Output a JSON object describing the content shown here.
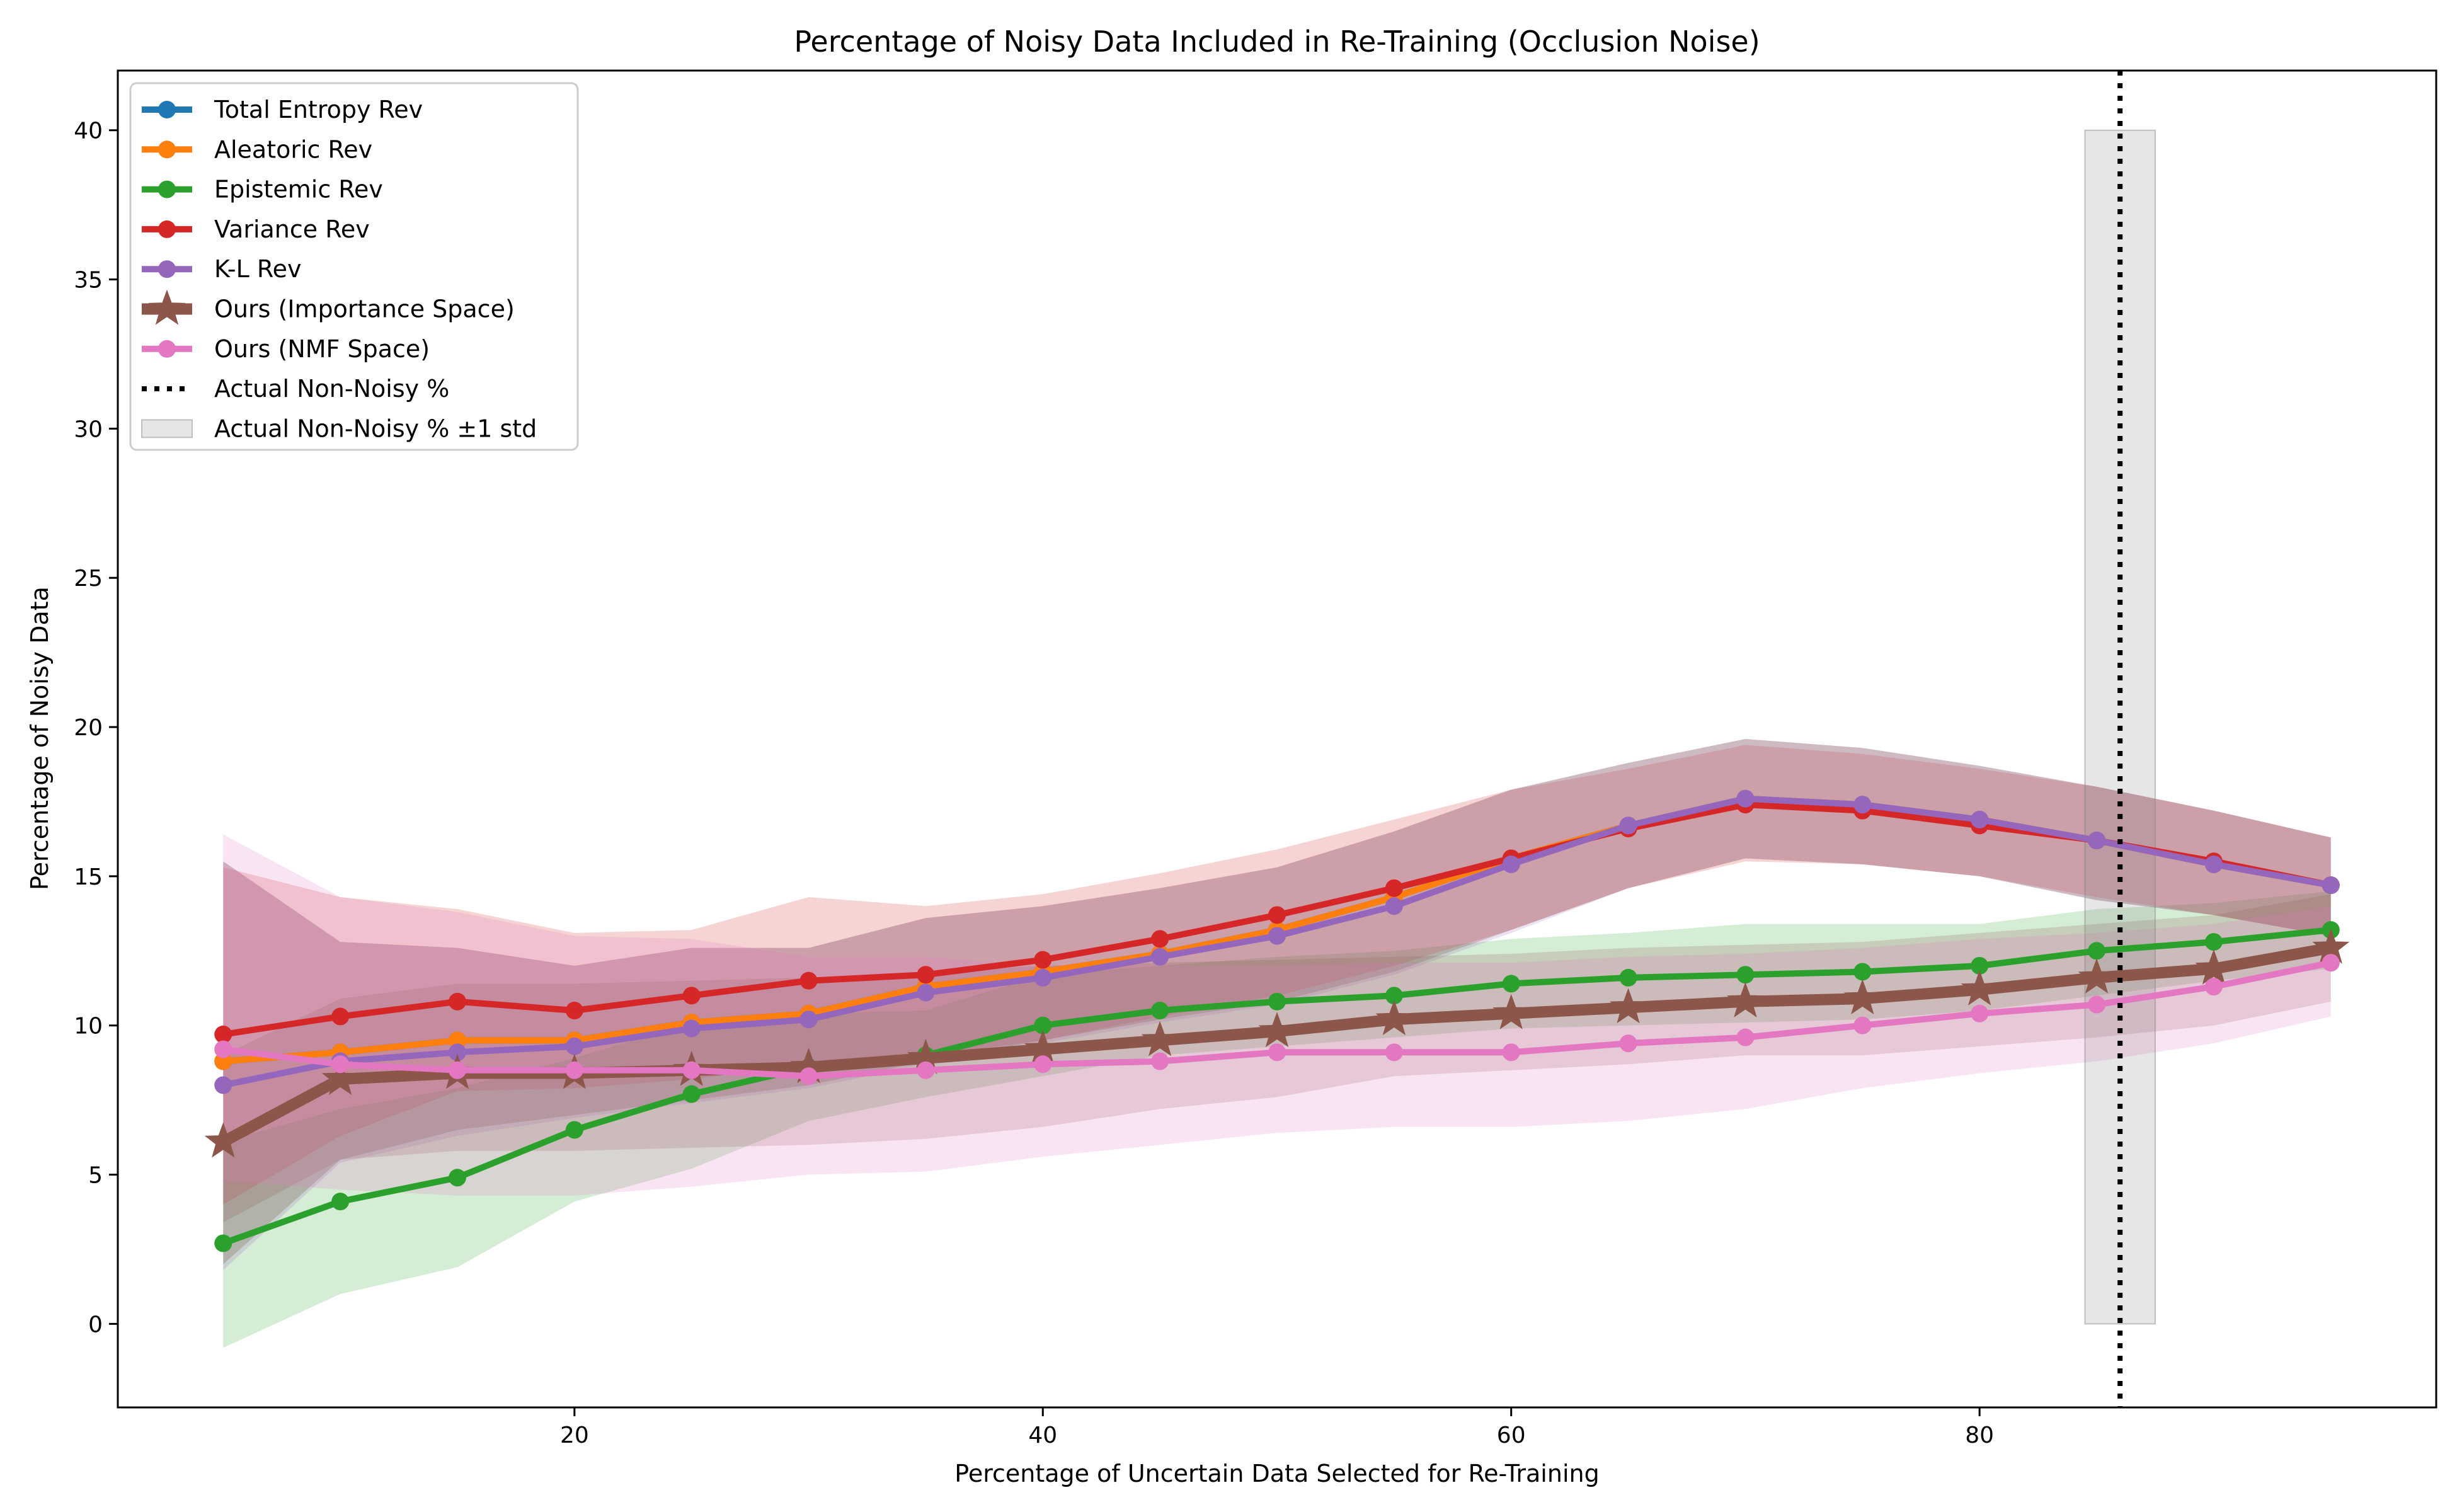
{
  "chart_data": {
    "type": "line",
    "title": "Percentage of Noisy Data Included in Re-Training (Occlusion Noise)",
    "xlabel": "Percentage of Uncertain Data Selected for Re-Training",
    "ylabel": "Percentage of Noisy Data",
    "xlim": [
      0.5,
      99.5
    ],
    "ylim": [
      -2.8,
      42
    ],
    "x_ticks": [
      20,
      40,
      60,
      80
    ],
    "y_ticks": [
      0,
      5,
      10,
      15,
      20,
      25,
      30,
      35,
      40
    ],
    "grid": false,
    "legend_position": "upper-left",
    "x": [
      5,
      10,
      15,
      20,
      25,
      30,
      35,
      40,
      45,
      50,
      55,
      60,
      65,
      70,
      75,
      80,
      85,
      90,
      95
    ],
    "series": [
      {
        "name": "Total Entropy Rev",
        "color": "#1f77b4",
        "marker": "circle",
        "values": [
          8.8,
          9.1,
          9.5,
          9.5,
          10.1,
          10.4,
          11.3,
          11.8,
          12.4,
          13.2,
          14.3,
          15.6,
          16.7,
          17.6,
          17.4,
          16.9,
          16.2,
          15.4,
          14.7
        ],
        "lower": [
          2.0,
          5.5,
          6.5,
          7.0,
          7.5,
          8.0,
          8.8,
          9.5,
          10.2,
          10.8,
          11.8,
          13.2,
          14.6,
          15.6,
          15.4,
          15.0,
          14.2,
          13.7,
          13.0
        ],
        "upper": [
          15.5,
          12.8,
          12.6,
          12.0,
          12.6,
          12.6,
          13.6,
          14.0,
          14.6,
          15.3,
          16.5,
          17.9,
          18.8,
          19.6,
          19.3,
          18.7,
          18.0,
          17.2,
          16.3
        ]
      },
      {
        "name": "Aleatoric Rev",
        "color": "#ff7f0e",
        "marker": "circle",
        "values": [
          8.8,
          9.1,
          9.5,
          9.5,
          10.1,
          10.4,
          11.3,
          11.8,
          12.4,
          13.2,
          14.3,
          15.6,
          16.7,
          17.6,
          17.4,
          16.9,
          16.2,
          15.4,
          14.7
        ],
        "lower": [
          2.0,
          5.5,
          6.5,
          7.0,
          7.5,
          8.0,
          8.8,
          9.5,
          10.2,
          10.8,
          11.8,
          13.2,
          14.6,
          15.6,
          15.4,
          15.0,
          14.2,
          13.7,
          13.0
        ],
        "upper": [
          15.5,
          12.8,
          12.6,
          12.0,
          12.6,
          12.6,
          13.6,
          14.0,
          14.6,
          15.3,
          16.5,
          17.9,
          18.8,
          19.6,
          19.3,
          18.7,
          18.0,
          17.2,
          16.3
        ]
      },
      {
        "name": "Epistemic Rev",
        "color": "#2ca02c",
        "marker": "circle",
        "values": [
          2.7,
          4.1,
          4.9,
          6.5,
          7.7,
          8.6,
          9.0,
          10.0,
          10.5,
          10.8,
          11.0,
          11.4,
          11.6,
          11.7,
          11.8,
          12.0,
          12.5,
          12.8,
          13.2
        ],
        "lower": [
          -0.8,
          1.0,
          1.9,
          4.1,
          5.2,
          6.8,
          7.6,
          8.3,
          9.0,
          9.3,
          9.6,
          9.9,
          10.0,
          10.1,
          10.2,
          10.5,
          11.0,
          11.5,
          11.9
        ],
        "upper": [
          6.1,
          7.2,
          7.9,
          8.9,
          10.1,
          10.4,
          10.5,
          11.7,
          12.0,
          12.3,
          12.5,
          12.9,
          13.1,
          13.4,
          13.4,
          13.4,
          13.9,
          14.1,
          14.5
        ]
      },
      {
        "name": "Variance Rev",
        "color": "#d62728",
        "marker": "circle",
        "values": [
          9.7,
          10.3,
          10.8,
          10.5,
          11.0,
          11.5,
          11.7,
          12.2,
          12.9,
          13.7,
          14.6,
          15.6,
          16.6,
          17.4,
          17.2,
          16.7,
          16.2,
          15.5,
          14.7
        ],
        "lower": [
          4.0,
          6.3,
          7.8,
          7.9,
          8.2,
          8.7,
          9.0,
          9.5,
          10.3,
          11.0,
          12.0,
          13.2,
          14.6,
          15.5,
          15.4,
          15.0,
          14.3,
          13.7,
          13.0
        ],
        "upper": [
          15.3,
          14.3,
          13.9,
          13.1,
          13.2,
          14.3,
          14.0,
          14.4,
          15.1,
          15.9,
          16.9,
          17.9,
          18.6,
          19.4,
          19.1,
          18.6,
          18.0,
          17.2,
          16.3
        ]
      },
      {
        "name": "K-L Rev",
        "color": "#9467bd",
        "marker": "circle",
        "values": [
          8.0,
          8.8,
          9.1,
          9.3,
          9.9,
          10.2,
          11.1,
          11.6,
          12.3,
          13.0,
          14.0,
          15.4,
          16.7,
          17.6,
          17.4,
          16.9,
          16.2,
          15.4,
          14.7
        ],
        "lower": [
          1.8,
          5.4,
          6.3,
          6.9,
          7.4,
          7.9,
          8.7,
          9.4,
          10.1,
          10.7,
          11.7,
          13.1,
          14.6,
          15.6,
          15.4,
          15.0,
          14.2,
          13.7,
          13.0
        ],
        "upper": [
          15.5,
          12.8,
          12.6,
          12.0,
          12.6,
          12.6,
          13.6,
          14.0,
          14.6,
          15.3,
          16.5,
          17.9,
          18.8,
          19.6,
          19.3,
          18.7,
          18.0,
          17.2,
          16.3
        ]
      },
      {
        "name": "Ours (Importance Space)",
        "color": "#8c564b",
        "marker": "star",
        "values": [
          6.1,
          8.2,
          8.4,
          8.4,
          8.5,
          8.6,
          8.9,
          9.2,
          9.5,
          9.8,
          10.2,
          10.4,
          10.6,
          10.8,
          10.9,
          11.2,
          11.6,
          11.9,
          12.6
        ],
        "lower": [
          3.4,
          5.5,
          5.8,
          5.8,
          5.9,
          6.0,
          6.2,
          6.6,
          7.2,
          7.6,
          8.3,
          8.5,
          8.7,
          9.0,
          9.0,
          9.3,
          9.6,
          10.0,
          10.8
        ],
        "upper": [
          9.0,
          10.9,
          11.4,
          11.4,
          11.5,
          11.6,
          11.8,
          12.0,
          12.1,
          12.2,
          12.3,
          12.4,
          12.6,
          12.7,
          12.8,
          13.1,
          13.4,
          13.7,
          14.4
        ]
      },
      {
        "name": "Ours (NMF Space)",
        "color": "#e377c2",
        "marker": "circle",
        "values": [
          9.2,
          8.7,
          8.5,
          8.5,
          8.5,
          8.3,
          8.5,
          8.7,
          8.8,
          9.1,
          9.1,
          9.1,
          9.4,
          9.6,
          10.0,
          10.4,
          10.7,
          11.3,
          12.1
        ],
        "lower": [
          4.8,
          4.5,
          4.3,
          4.3,
          4.6,
          5.0,
          5.1,
          5.6,
          6.0,
          6.4,
          6.6,
          6.6,
          6.8,
          7.2,
          7.9,
          8.4,
          8.8,
          9.4,
          10.3
        ],
        "upper": [
          16.4,
          14.3,
          13.8,
          13.0,
          12.9,
          12.3,
          12.3,
          12.0,
          12.0,
          12.0,
          12.1,
          12.1,
          12.3,
          12.4,
          12.6,
          12.9,
          13.1,
          13.4,
          14.0
        ]
      }
    ],
    "reference": {
      "line_name": "Actual Non-Noisy %",
      "line_x": 86,
      "band_name": "Actual Non-Noisy % ±1 std",
      "band_x": [
        84.5,
        87.5
      ],
      "band_y": [
        0,
        40
      ]
    }
  }
}
